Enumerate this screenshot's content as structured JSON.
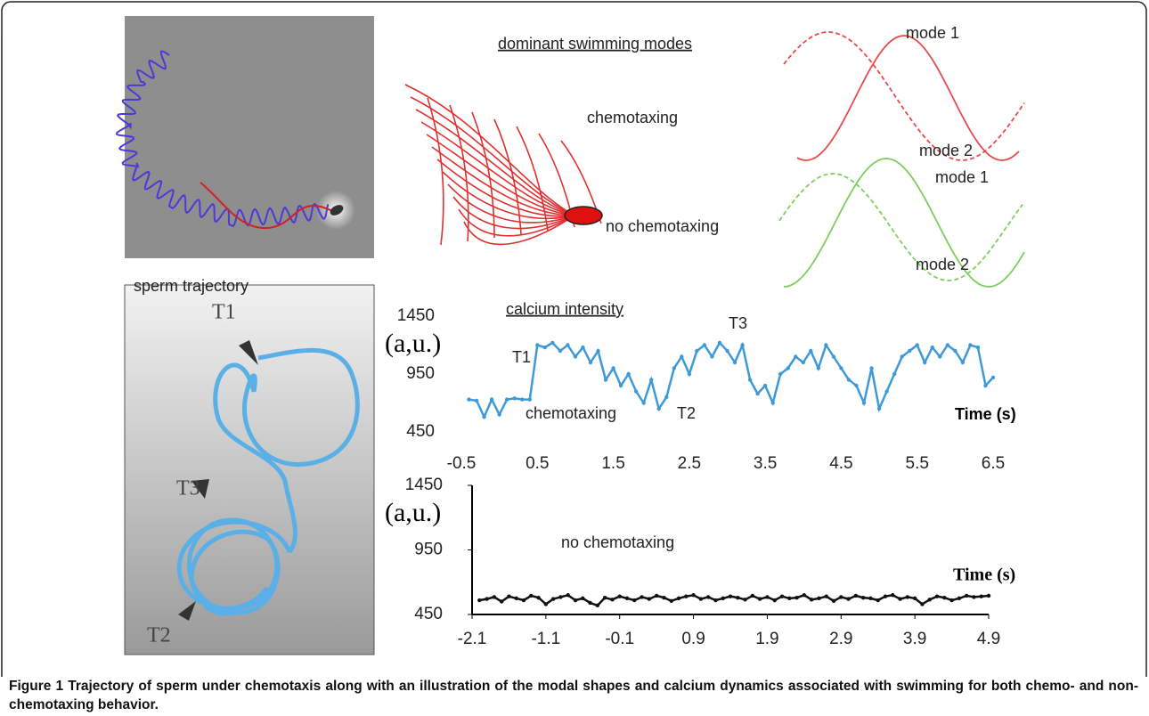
{
  "figure": {
    "sperm_trajectory": "sperm trajectory",
    "dominant_modes": "dominant swimming modes",
    "chemotaxing": "chemotaxing",
    "no_chemotaxing": "no chemotaxing",
    "mode_labels": [
      "mode 1",
      "mode 2",
      "mode 1",
      "mode 2"
    ],
    "trajectory_markers": [
      "T1",
      "T3",
      "T2"
    ]
  },
  "chart_data": [
    {
      "type": "line",
      "y_label": "(a,u.)",
      "x_label": "Time (s)",
      "annotations": [
        "calcium intensity",
        "T1",
        "T3",
        "chemotaxing",
        "T2"
      ],
      "color": "#3d9ad6",
      "x": [
        -0.4,
        -0.3,
        -0.2,
        -0.1,
        0,
        0.1,
        0.2,
        0.3,
        0.4,
        0.5,
        0.6,
        0.7,
        0.8,
        0.9,
        1,
        1.1,
        1.2,
        1.3,
        1.4,
        1.5,
        1.6,
        1.7,
        1.8,
        1.9,
        2,
        2.1,
        2.2,
        2.3,
        2.4,
        2.5,
        2.6,
        2.7,
        2.8,
        2.9,
        3,
        3.1,
        3.2,
        3.3,
        3.4,
        3.5,
        3.6,
        3.7,
        3.8,
        3.9,
        4,
        4.1,
        4.2,
        4.3,
        4.4,
        4.5,
        4.6,
        4.7,
        4.8,
        4.9,
        5,
        5.1,
        5.2,
        5.3,
        5.4,
        5.5,
        5.6,
        5.7,
        5.8,
        5.9,
        6,
        6.1,
        6.2,
        6.3,
        6.4,
        6.5
      ],
      "values": [
        730,
        720,
        580,
        730,
        600,
        730,
        740,
        730,
        730,
        1200,
        1180,
        1220,
        1150,
        1200,
        1100,
        1180,
        1050,
        1150,
        900,
        1000,
        850,
        950,
        800,
        700,
        900,
        650,
        750,
        1000,
        1100,
        950,
        1150,
        1200,
        1100,
        1220,
        1150,
        1050,
        1200,
        900,
        780,
        850,
        700,
        950,
        1000,
        1100,
        1050,
        1150,
        1000,
        1200,
        1100,
        1000,
        900,
        850,
        700,
        1000,
        650,
        800,
        950,
        1100,
        1150,
        1200,
        1050,
        1180,
        1100,
        1200,
        1150,
        1050,
        1200,
        1180,
        850,
        920
      ],
      "xlim": [
        -0.5,
        6.5
      ],
      "xticks": [
        -0.5,
        0.5,
        1.5,
        2.5,
        3.5,
        4.5,
        5.5,
        6.5
      ],
      "ylim": [
        450,
        1450
      ],
      "yticks": [
        450,
        950,
        1450
      ]
    },
    {
      "type": "line",
      "y_label": "(a,u.)",
      "x_label": "Time (s)",
      "annotations": [
        "no chemotaxing"
      ],
      "color": "#111111",
      "x": [
        -2,
        -1.9,
        -1.8,
        -1.7,
        -1.6,
        -1.5,
        -1.4,
        -1.3,
        -1.2,
        -1.1,
        -1,
        -0.9,
        -0.8,
        -0.7,
        -0.6,
        -0.5,
        -0.4,
        -0.3,
        -0.2,
        -0.1,
        0,
        0.1,
        0.2,
        0.3,
        0.4,
        0.5,
        0.6,
        0.7,
        0.8,
        0.9,
        1,
        1.1,
        1.2,
        1.3,
        1.4,
        1.5,
        1.6,
        1.7,
        1.8,
        1.9,
        2,
        2.1,
        2.2,
        2.3,
        2.4,
        2.5,
        2.6,
        2.7,
        2.8,
        2.9,
        3,
        3.1,
        3.2,
        3.3,
        3.4,
        3.5,
        3.6,
        3.7,
        3.8,
        3.9,
        4,
        4.1,
        4.2,
        4.3,
        4.4,
        4.5,
        4.6,
        4.7,
        4.8,
        4.9
      ],
      "values": [
        560,
        570,
        585,
        550,
        590,
        575,
        560,
        595,
        580,
        530,
        570,
        585,
        600,
        560,
        575,
        540,
        520,
        580,
        565,
        590,
        575,
        560,
        585,
        570,
        595,
        580,
        555,
        575,
        590,
        600,
        570,
        585,
        560,
        575,
        590,
        580,
        565,
        595,
        570,
        585,
        560,
        590,
        575,
        580,
        600,
        565,
        575,
        590,
        555,
        585,
        570,
        595,
        580,
        575,
        560,
        590,
        600,
        570,
        585,
        575,
        530,
        565,
        590,
        580,
        560,
        575,
        595,
        585,
        590,
        595
      ],
      "xlim": [
        -2.1,
        4.9
      ],
      "xticks": [
        -2.1,
        -1.1,
        -0.1,
        0.9,
        1.9,
        2.9,
        3.9,
        4.9
      ],
      "ylim": [
        450,
        1450
      ],
      "yticks": [
        450,
        950,
        1450
      ]
    }
  ],
  "caption": {
    "label": "Figure 1",
    "text": "Trajectory of sperm under chemotaxis along with an illustration of the modal shapes and calcium dynamics associated with swimming for both chemo- and non-chemotaxing behavior."
  }
}
